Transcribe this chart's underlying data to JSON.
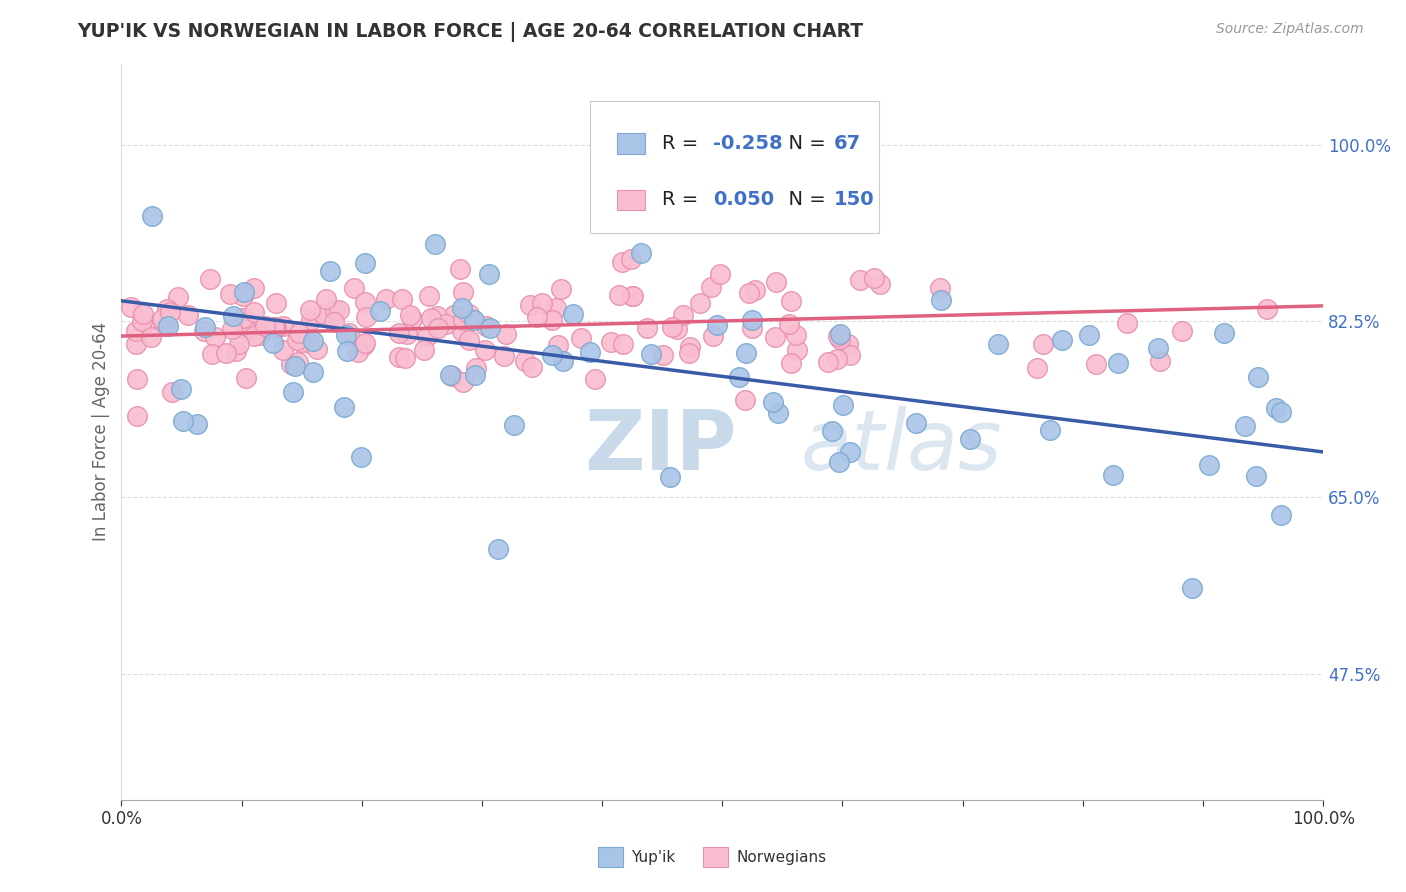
{
  "title": "YUP'IK VS NORWEGIAN IN LABOR FORCE | AGE 20-64 CORRELATION CHART",
  "source_text": "Source: ZipAtlas.com",
  "ylabel": "In Labor Force | Age 20-64",
  "xlim": [
    0.0,
    1.0
  ],
  "ylim": [
    0.35,
    1.08
  ],
  "yticks": [
    0.475,
    0.65,
    0.825,
    1.0
  ],
  "background_color": "#ffffff",
  "watermark_text": "ZIPatlas",
  "watermark_color": "#c8daea",
  "legend_R_yupik": "-0.258",
  "legend_N_yupik": "67",
  "legend_R_norwegian": "0.050",
  "legend_N_norwegian": "150",
  "yupik_color": "#aac4e8",
  "norwegian_color": "#f9bdd0",
  "yupik_edge_color": "#7aaad0",
  "norwegian_edge_color": "#e890b0",
  "yupik_line_color": "#3a5ca8",
  "norwegian_line_color": "#e06080",
  "blue_text_color": "#4070c8",
  "title_color": "#333333",
  "source_color": "#999999",
  "ylabel_color": "#666666",
  "tick_color": "#4070c8",
  "grid_color": "#dddddd",
  "yupik_trend_start": 0.845,
  "yupik_trend_end": 0.695,
  "norwegian_trend_start": 0.81,
  "norwegian_trend_end": 0.84
}
